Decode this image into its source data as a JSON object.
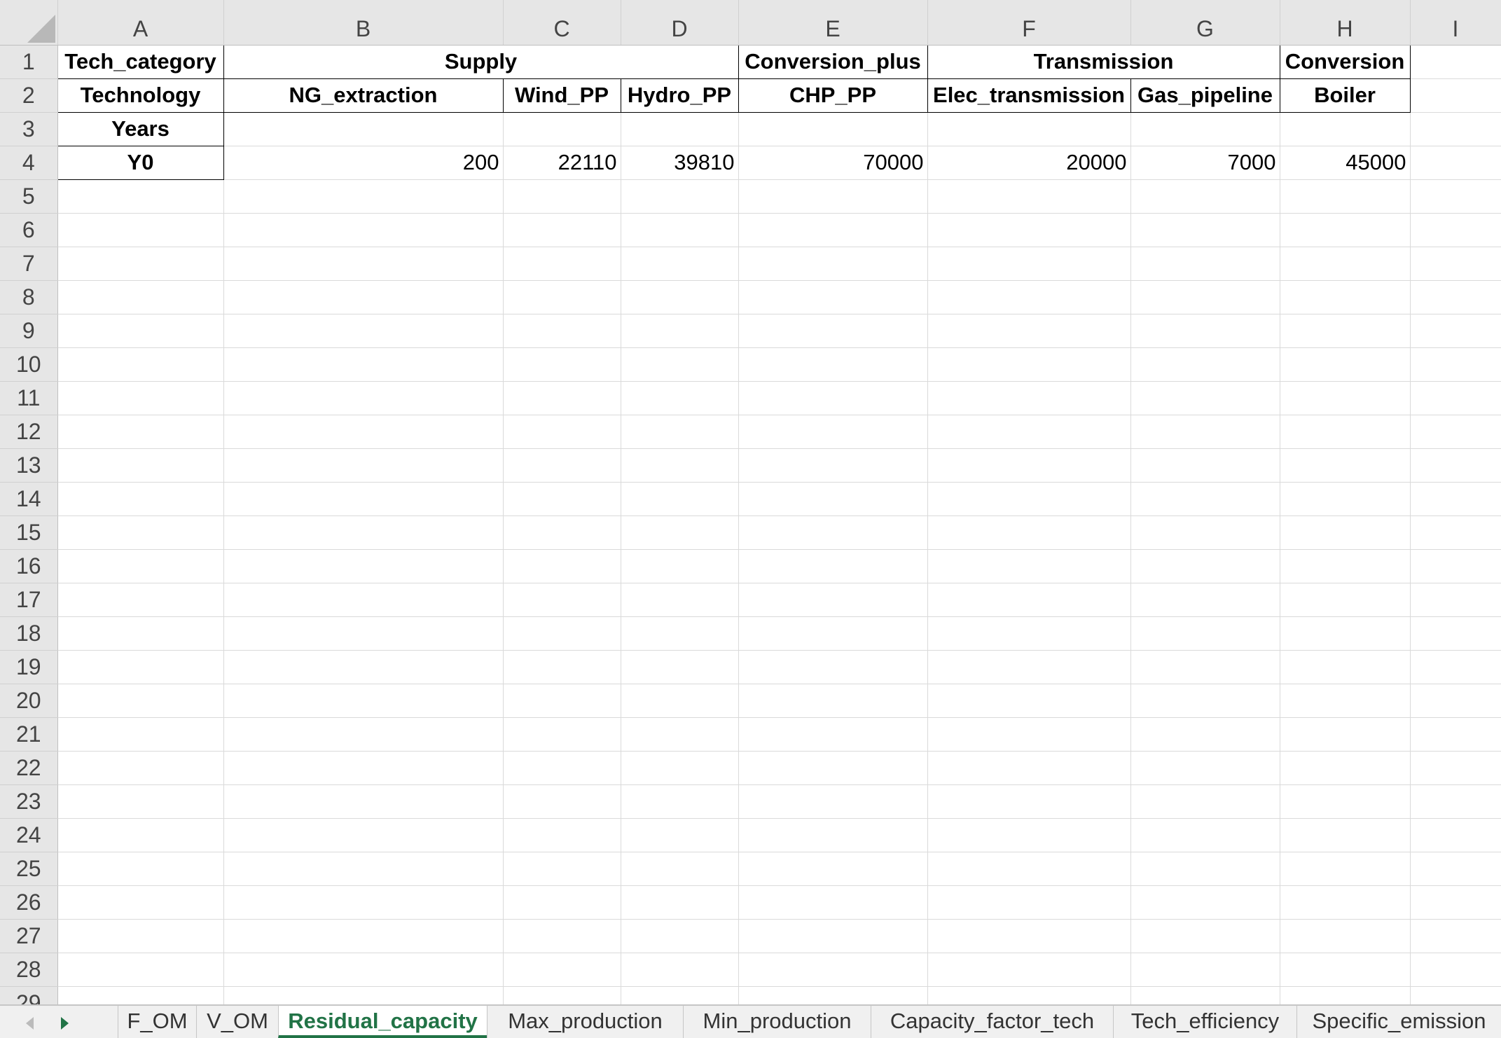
{
  "columns": [
    "A",
    "B",
    "C",
    "D",
    "E",
    "F",
    "G",
    "H",
    "I"
  ],
  "rows": {
    "r1": {
      "A": "Tech_category",
      "BCD": "Supply",
      "E": "Conversion_plus",
      "FG": "Transmission",
      "H": "Conversion"
    },
    "r2": {
      "A": "Technology",
      "B": "NG_extraction",
      "C": "Wind_PP",
      "D": "Hydro_PP",
      "E": "CHP_PP",
      "F": "Elec_transmission",
      "G": "Gas_pipeline",
      "H": "Boiler"
    },
    "r3": {
      "A": "Years"
    },
    "r4": {
      "A": "Y0",
      "B": "200",
      "C": "22110",
      "D": "39810",
      "E": "70000",
      "F": "20000",
      "G": "7000",
      "H": "45000"
    }
  },
  "row_numbers": [
    "1",
    "2",
    "3",
    "4",
    "5",
    "6",
    "7",
    "8",
    "9",
    "10",
    "11",
    "12",
    "13",
    "14",
    "15",
    "16",
    "17",
    "18",
    "19",
    "20",
    "21",
    "22",
    "23",
    "24",
    "25",
    "26",
    "27",
    "28",
    "29"
  ],
  "sheet_tabs": {
    "items": [
      "F_OM",
      "V_OM",
      "Residual_capacity",
      "Max_production",
      "Min_production",
      "Capacity_factor_tech",
      "Tech_efficiency",
      "Specific_emission"
    ],
    "active": "Residual_capacity"
  },
  "icons": {
    "prev_sheet": "triangle-left-icon",
    "next_sheet": "triangle-right-icon",
    "select_all": "select-all-corner-icon"
  },
  "colors": {
    "accent": "#217346",
    "header_bg": "#e6e6e6",
    "gridline": "#dadada"
  }
}
